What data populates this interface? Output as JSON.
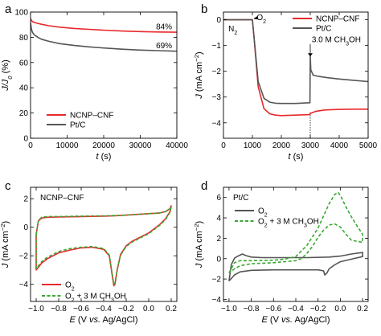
{
  "chart_data": [
    {
      "panel_label": "a",
      "type": "line",
      "xlabel": "t (s)",
      "ylabel": "J/J0 (%)",
      "ylabel_main": "J/J",
      "ylabel_sub": "0",
      "ylabel_tail": " (%)",
      "xlim": [
        0,
        40000
      ],
      "ylim": [
        0,
        100
      ],
      "xticks": [
        0,
        10000,
        20000,
        30000,
        40000
      ],
      "yticks": [
        0,
        20,
        40,
        60,
        80,
        100
      ],
      "legend_position": "bottom-left",
      "series": [
        {
          "name": "NCNP–CNF",
          "color": "#e8282b",
          "x": [
            0,
            200,
            500,
            1000,
            2000,
            3000,
            5000,
            8000,
            12000,
            16000,
            20000,
            25000,
            30000,
            35000,
            40000
          ],
          "y": [
            95,
            93.5,
            92.5,
            91.8,
            91,
            90.3,
            89.2,
            88,
            87,
            86.3,
            85.7,
            85,
            84.5,
            84.2,
            84
          ]
        },
        {
          "name": "Pt/C",
          "color": "#555555",
          "x": [
            0,
            200,
            500,
            1000,
            2000,
            3000,
            5000,
            8000,
            12000,
            16000,
            20000,
            25000,
            30000,
            35000,
            40000
          ],
          "y": [
            92,
            87,
            84,
            82,
            80,
            78.5,
            76.8,
            75,
            73.5,
            72.4,
            71.5,
            70.6,
            69.9,
            69.4,
            69
          ]
        }
      ],
      "annotations": [
        {
          "text": "84%",
          "x": 36500,
          "y": 89
        },
        {
          "text": "69%",
          "x": 36500,
          "y": 74
        }
      ]
    },
    {
      "panel_label": "b",
      "type": "line",
      "xlabel": "t (s)",
      "ylabel": "J (mA cm−2)",
      "ylabel_main": "J (mA cm",
      "ylabel_sup": "−2",
      "ylabel_tail": ")",
      "xlim": [
        0,
        5000
      ],
      "ylim": [
        -4.6,
        0.3
      ],
      "xticks": [
        0,
        1000,
        2000,
        3000,
        4000,
        5000
      ],
      "yticks": [
        0,
        -1,
        -2,
        -3,
        -4
      ],
      "legend_position": "top-right",
      "series": [
        {
          "name": "NCNP–CNF",
          "color": "#e8282b",
          "x": [
            0,
            1000,
            1050,
            1200,
            1400,
            1600,
            1800,
            2000,
            2500,
            2990,
            3000,
            3020,
            3200,
            3500,
            4000,
            4500,
            5000
          ],
          "y": [
            0,
            0,
            -0.6,
            -2.6,
            -3.45,
            -3.65,
            -3.7,
            -3.72,
            -3.7,
            -3.68,
            -3.62,
            -3.63,
            -3.55,
            -3.5,
            -3.48,
            -3.47,
            -3.47
          ]
        },
        {
          "name": "Pt/C",
          "color": "#555555",
          "x": [
            0,
            1000,
            1050,
            1200,
            1400,
            1600,
            1800,
            2000,
            2500,
            2990,
            3000,
            3020,
            3100,
            3300,
            3600,
            4000,
            4500,
            5000
          ],
          "y": [
            0,
            0,
            -0.6,
            -2.4,
            -3.05,
            -3.2,
            -3.24,
            -3.25,
            -3.25,
            -3.22,
            -1.4,
            -1.95,
            -2.15,
            -2.2,
            -2.25,
            -2.3,
            -2.35,
            -2.4
          ]
        }
      ],
      "annotations": [
        {
          "text_main": "O",
          "text_sub": "2",
          "x": 1150,
          "y": 0.12
        },
        {
          "text": "N2",
          "text_main": "N",
          "text_sub": "2",
          "x": 170,
          "y": -0.32
        },
        {
          "text": "3.0 M CH3OH",
          "text_main": "3.0 M CH",
          "text_sub": "3",
          "text_tail": "OH",
          "x": 3900,
          "y": -0.75
        }
      ]
    },
    {
      "panel_label": "c",
      "type": "line",
      "title": "NCNP–CNF",
      "xlabel": "E (V vs. Ag/AgCl)",
      "ylabel": "J (mA cm−2)",
      "ylabel_main": "J (mA cm",
      "ylabel_sup": "−2",
      "ylabel_tail": ")",
      "xlim": [
        -1.05,
        0.25
      ],
      "ylim": [
        -5.2,
        2.8
      ],
      "xticks": [
        -1.0,
        -0.8,
        -0.6,
        -0.4,
        -0.2,
        0.0,
        0.2
      ],
      "yticks": [
        2,
        0,
        -2,
        -4
      ],
      "legend_position": "bottom-left",
      "series": [
        {
          "name": "O2",
          "color": "#e8282b",
          "style": "solid",
          "x": [
            -1.0,
            -0.98,
            -0.95,
            -0.9,
            -0.8,
            -0.6,
            -0.4,
            -0.3,
            -0.2,
            -0.1,
            0.0,
            0.1,
            0.15,
            0.19,
            0.2,
            0.19,
            0.15,
            0.1,
            0.0,
            -0.1,
            -0.15,
            -0.2,
            -0.25,
            -0.28,
            -0.3,
            -0.31,
            -0.32,
            -0.35,
            -0.4,
            -0.5,
            -0.6,
            -0.7,
            -0.8,
            -0.9,
            -0.95,
            -1.0,
            -1.0
          ],
          "y": [
            -0.5,
            0.45,
            0.65,
            0.7,
            0.72,
            0.75,
            0.78,
            0.8,
            0.85,
            0.9,
            0.95,
            1.0,
            1.1,
            1.3,
            1.5,
            1.1,
            0.6,
            0.2,
            -0.4,
            -0.8,
            -1.0,
            -1.3,
            -1.9,
            -3.0,
            -4.0,
            -4.1,
            -3.6,
            -2.0,
            -1.55,
            -1.4,
            -1.45,
            -1.6,
            -1.8,
            -2.2,
            -2.5,
            -3.0,
            -0.5
          ]
        },
        {
          "name": "O2 + 3 M CH3OH",
          "color": "#3aa832",
          "style": "dashed",
          "x": [
            -1.0,
            -0.98,
            -0.95,
            -0.9,
            -0.8,
            -0.6,
            -0.4,
            -0.3,
            -0.2,
            -0.1,
            0.0,
            0.1,
            0.15,
            0.19,
            0.2,
            0.19,
            0.15,
            0.1,
            0.0,
            -0.1,
            -0.15,
            -0.2,
            -0.25,
            -0.28,
            -0.3,
            -0.31,
            -0.32,
            -0.35,
            -0.4,
            -0.5,
            -0.6,
            -0.7,
            -0.8,
            -0.9,
            -0.95,
            -1.0,
            -1.0
          ],
          "y": [
            -0.5,
            0.5,
            0.7,
            0.75,
            0.75,
            0.78,
            0.8,
            0.82,
            0.85,
            0.9,
            0.95,
            1.0,
            1.1,
            1.3,
            1.45,
            1.05,
            0.55,
            0.15,
            -0.45,
            -0.85,
            -1.05,
            -1.35,
            -1.95,
            -2.95,
            -3.9,
            -4.0,
            -3.5,
            -1.95,
            -1.5,
            -1.35,
            -1.4,
            -1.5,
            -1.7,
            -2.1,
            -2.4,
            -2.9,
            -0.5
          ]
        }
      ]
    },
    {
      "panel_label": "d",
      "type": "line",
      "title": "Pt/C",
      "xlabel": "E (V vs. Ag/AgCl)",
      "ylabel": "J (mA cm−2)",
      "ylabel_main": "J (mA cm",
      "ylabel_sup": "−2",
      "ylabel_tail": ")",
      "xlim": [
        -1.05,
        0.25
      ],
      "ylim": [
        -4.2,
        7.0
      ],
      "xticks": [
        -1.0,
        -0.8,
        -0.6,
        -0.4,
        -0.2,
        0.0,
        0.2
      ],
      "yticks": [
        6,
        4,
        2,
        0,
        -2,
        -4
      ],
      "legend_position": "bottom-left",
      "series": [
        {
          "name": "O2",
          "color": "#555555",
          "style": "solid",
          "x": [
            -1.0,
            -0.98,
            -0.95,
            -0.92,
            -0.88,
            -0.85,
            -0.8,
            -0.7,
            -0.5,
            -0.3,
            -0.1,
            0.0,
            0.1,
            0.2,
            0.2,
            0.1,
            0.0,
            -0.05,
            -0.1,
            -0.12,
            -0.14,
            -0.15,
            -0.2,
            -0.4,
            -0.6,
            -0.8,
            -0.9,
            -0.95,
            -1.0,
            -1.0
          ],
          "y": [
            -2.2,
            -0.6,
            0.05,
            0.25,
            0.45,
            0.3,
            0.15,
            0.1,
            0.1,
            0.1,
            0.15,
            0.25,
            0.45,
            0.6,
            0.2,
            -0.05,
            -0.3,
            -0.6,
            -1.0,
            -1.4,
            -1.6,
            -1.2,
            -1.1,
            -1.1,
            -1.1,
            -1.15,
            -1.3,
            -1.6,
            -2.2,
            -2.2
          ]
        },
        {
          "name": "O2 + 3 M CH3OH",
          "color": "#3aa832",
          "style": "dashed",
          "x": [
            -1.0,
            -0.95,
            -0.9,
            -0.8,
            -0.6,
            -0.5,
            -0.4,
            -0.3,
            -0.2,
            -0.15,
            -0.1,
            -0.05,
            -0.02,
            0.0,
            0.05,
            0.1,
            0.15,
            0.2,
            0.2,
            0.15,
            0.1,
            0.05,
            0.0,
            -0.05,
            -0.1,
            -0.15,
            -0.2,
            -0.25,
            -0.3,
            -0.35,
            -0.4,
            -0.6,
            -0.8,
            -0.9,
            -0.95,
            -1.0
          ],
          "y": [
            -1.4,
            -0.4,
            -0.2,
            -0.2,
            -0.15,
            -0.05,
            0.2,
            1.3,
            3.0,
            4.2,
            5.4,
            6.3,
            6.5,
            6.2,
            5.1,
            4.1,
            3.2,
            2.4,
            1.6,
            1.7,
            1.8,
            2.4,
            3.1,
            3.4,
            3.3,
            2.8,
            2.1,
            1.2,
            0.5,
            0.0,
            -0.2,
            -0.4,
            -0.5,
            -0.7,
            -1.0,
            -1.4
          ]
        }
      ]
    }
  ],
  "legend_labels": {
    "c": [
      {
        "main": "O",
        "sub": "2"
      },
      {
        "main": "O",
        "sub": "2",
        "tail": " + 3 M CH",
        "sub2": "3",
        "tail2": "OH"
      }
    ],
    "d": [
      {
        "main": "O",
        "sub": "2"
      },
      {
        "main": "O",
        "sub": "2",
        "tail": " + 3 M CH",
        "sub2": "3",
        "tail2": "OH"
      }
    ]
  },
  "axis_labels": {
    "t": "t",
    "t_unit": " (s)",
    "E": "E",
    "E_unit": " (V ",
    "E_vs": "vs.",
    "E_tail": " Ag/AgCl)"
  }
}
